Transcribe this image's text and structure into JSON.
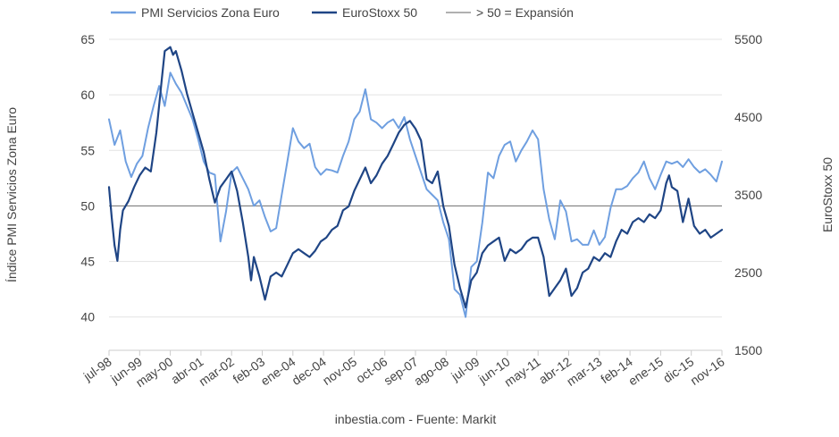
{
  "chart_data": {
    "type": "line",
    "title": "",
    "source": "inbestia.com - Fuente: Markit",
    "y_left_label": "Índice PMI Servicios Zona Euro",
    "y_right_label": "EuroStoxx 50",
    "y_left_range": [
      37,
      65
    ],
    "y_left_ticks": [
      "40",
      "45",
      "50",
      "55",
      "60",
      "65"
    ],
    "y_right_range": [
      1500,
      5500
    ],
    "y_right_ticks": [
      "1500",
      "2500",
      "3500",
      "4500",
      "5500"
    ],
    "x_range": [
      "1998-07",
      "2016-11"
    ],
    "x_ticks": [
      {
        "label": "jul-98",
        "date": "1998-07"
      },
      {
        "label": "jun-99",
        "date": "1999-06"
      },
      {
        "label": "may-00",
        "date": "2000-05"
      },
      {
        "label": "abr-01",
        "date": "2001-04"
      },
      {
        "label": "mar-02",
        "date": "2002-03"
      },
      {
        "label": "feb-03",
        "date": "2003-02"
      },
      {
        "label": "ene-04",
        "date": "2004-01"
      },
      {
        "label": "dec-04",
        "date": "2004-12"
      },
      {
        "label": "nov-05",
        "date": "2005-11"
      },
      {
        "label": "oct-06",
        "date": "2006-10"
      },
      {
        "label": "sep-07",
        "date": "2007-09"
      },
      {
        "label": "ago-08",
        "date": "2008-08"
      },
      {
        "label": "jul-09",
        "date": "2009-07"
      },
      {
        "label": "jun-10",
        "date": "2010-06"
      },
      {
        "label": "may-11",
        "date": "2011-05"
      },
      {
        "label": "abr-12",
        "date": "2012-04"
      },
      {
        "label": "mar-13",
        "date": "2013-03"
      },
      {
        "label": "feb-14",
        "date": "2014-02"
      },
      {
        "label": "ene-15",
        "date": "2015-01"
      },
      {
        "label": "dic-15",
        "date": "2015-12"
      },
      {
        "label": "nov-16",
        "date": "2016-11"
      }
    ],
    "grid": true,
    "legend_position": "top",
    "reference_line": {
      "name": "> 50 = Expansión",
      "value": 50,
      "axis": "left",
      "color": "#808080"
    },
    "series": [
      {
        "name": "PMI Servicios Zona Euro",
        "axis": "left",
        "color": "#6f9fe0",
        "points": [
          [
            "1998-07",
            57.8
          ],
          [
            "1998-09",
            55.5
          ],
          [
            "1998-11",
            56.8
          ],
          [
            "1999-01",
            54.0
          ],
          [
            "1999-03",
            52.6
          ],
          [
            "1999-05",
            53.8
          ],
          [
            "1999-07",
            54.5
          ],
          [
            "1999-09",
            57.0
          ],
          [
            "1999-11",
            59.0
          ],
          [
            "2000-01",
            60.8
          ],
          [
            "2000-03",
            59.0
          ],
          [
            "2000-05",
            62.0
          ],
          [
            "2000-07",
            61.0
          ],
          [
            "2000-09",
            60.2
          ],
          [
            "2000-11",
            59.0
          ],
          [
            "2001-01",
            57.8
          ],
          [
            "2001-03",
            56.0
          ],
          [
            "2001-05",
            54.0
          ],
          [
            "2001-07",
            53.0
          ],
          [
            "2001-09",
            52.8
          ],
          [
            "2001-11",
            46.8
          ],
          [
            "2002-01",
            49.5
          ],
          [
            "2002-03",
            53.0
          ],
          [
            "2002-05",
            53.5
          ],
          [
            "2002-07",
            52.5
          ],
          [
            "2002-09",
            51.5
          ],
          [
            "2002-11",
            50.0
          ],
          [
            "2003-01",
            50.5
          ],
          [
            "2003-03",
            49.0
          ],
          [
            "2003-05",
            47.7
          ],
          [
            "2003-07",
            48.0
          ],
          [
            "2003-09",
            51.0
          ],
          [
            "2003-11",
            54.0
          ],
          [
            "2004-01",
            57.0
          ],
          [
            "2004-03",
            55.8
          ],
          [
            "2004-05",
            55.2
          ],
          [
            "2004-07",
            55.6
          ],
          [
            "2004-09",
            53.5
          ],
          [
            "2004-11",
            52.8
          ],
          [
            "2005-01",
            53.3
          ],
          [
            "2005-03",
            53.2
          ],
          [
            "2005-05",
            53.0
          ],
          [
            "2005-07",
            54.5
          ],
          [
            "2005-09",
            55.8
          ],
          [
            "2005-11",
            57.8
          ],
          [
            "2006-01",
            58.5
          ],
          [
            "2006-03",
            60.5
          ],
          [
            "2006-05",
            57.8
          ],
          [
            "2006-07",
            57.5
          ],
          [
            "2006-09",
            57.0
          ],
          [
            "2006-11",
            57.5
          ],
          [
            "2007-01",
            57.8
          ],
          [
            "2007-03",
            57.0
          ],
          [
            "2007-05",
            58.0
          ],
          [
            "2007-07",
            56.0
          ],
          [
            "2007-09",
            54.5
          ],
          [
            "2007-11",
            53.0
          ],
          [
            "2008-01",
            51.5
          ],
          [
            "2008-03",
            51.0
          ],
          [
            "2008-05",
            50.5
          ],
          [
            "2008-07",
            48.5
          ],
          [
            "2008-09",
            47.0
          ],
          [
            "2008-11",
            42.5
          ],
          [
            "2009-01",
            42.0
          ],
          [
            "2009-03",
            40.0
          ],
          [
            "2009-05",
            44.5
          ],
          [
            "2009-07",
            45.0
          ],
          [
            "2009-09",
            48.5
          ],
          [
            "2009-11",
            53.0
          ],
          [
            "2010-01",
            52.5
          ],
          [
            "2010-03",
            54.5
          ],
          [
            "2010-05",
            55.5
          ],
          [
            "2010-07",
            55.8
          ],
          [
            "2010-09",
            54.0
          ],
          [
            "2010-11",
            55.0
          ],
          [
            "2011-01",
            55.8
          ],
          [
            "2011-03",
            56.8
          ],
          [
            "2011-05",
            56.0
          ],
          [
            "2011-07",
            51.5
          ],
          [
            "2011-09",
            48.8
          ],
          [
            "2011-11",
            47.0
          ],
          [
            "2012-01",
            50.5
          ],
          [
            "2012-03",
            49.5
          ],
          [
            "2012-05",
            46.8
          ],
          [
            "2012-07",
            47.0
          ],
          [
            "2012-09",
            46.5
          ],
          [
            "2012-11",
            46.5
          ],
          [
            "2013-01",
            47.8
          ],
          [
            "2013-03",
            46.5
          ],
          [
            "2013-05",
            47.2
          ],
          [
            "2013-07",
            49.8
          ],
          [
            "2013-09",
            51.5
          ],
          [
            "2013-11",
            51.5
          ],
          [
            "2014-01",
            51.8
          ],
          [
            "2014-03",
            52.5
          ],
          [
            "2014-05",
            53.0
          ],
          [
            "2014-07",
            54.0
          ],
          [
            "2014-09",
            52.5
          ],
          [
            "2014-11",
            51.5
          ],
          [
            "2015-01",
            52.8
          ],
          [
            "2015-03",
            54.0
          ],
          [
            "2015-05",
            53.8
          ],
          [
            "2015-07",
            54.0
          ],
          [
            "2015-09",
            53.5
          ],
          [
            "2015-11",
            54.2
          ],
          [
            "2016-01",
            53.5
          ],
          [
            "2016-03",
            53.0
          ],
          [
            "2016-05",
            53.3
          ],
          [
            "2016-07",
            52.8
          ],
          [
            "2016-09",
            52.2
          ],
          [
            "2016-11",
            54.0
          ]
        ]
      },
      {
        "name": "EuroStoxx 50",
        "axis": "right",
        "color": "#1f4585",
        "points": [
          [
            "1998-07",
            3600
          ],
          [
            "1998-08",
            3200
          ],
          [
            "1998-09",
            2850
          ],
          [
            "1998-10",
            2650
          ],
          [
            "1998-11",
            3050
          ],
          [
            "1998-12",
            3300
          ],
          [
            "1999-02",
            3420
          ],
          [
            "1999-04",
            3600
          ],
          [
            "1999-06",
            3750
          ],
          [
            "1999-08",
            3850
          ],
          [
            "1999-10",
            3800
          ],
          [
            "1999-12",
            4300
          ],
          [
            "2000-02",
            5000
          ],
          [
            "2000-03",
            5350
          ],
          [
            "2000-05",
            5400
          ],
          [
            "2000-06",
            5300
          ],
          [
            "2000-07",
            5350
          ],
          [
            "2000-09",
            5100
          ],
          [
            "2000-11",
            4800
          ],
          [
            "2001-01",
            4550
          ],
          [
            "2001-03",
            4300
          ],
          [
            "2001-05",
            4050
          ],
          [
            "2001-07",
            3700
          ],
          [
            "2001-09",
            3400
          ],
          [
            "2001-11",
            3600
          ],
          [
            "2002-01",
            3700
          ],
          [
            "2002-03",
            3800
          ],
          [
            "2002-05",
            3550
          ],
          [
            "2002-07",
            3150
          ],
          [
            "2002-09",
            2700
          ],
          [
            "2002-10",
            2400
          ],
          [
            "2002-11",
            2700
          ],
          [
            "2003-01",
            2450
          ],
          [
            "2003-03",
            2150
          ],
          [
            "2003-05",
            2450
          ],
          [
            "2003-07",
            2500
          ],
          [
            "2003-09",
            2450
          ],
          [
            "2003-11",
            2600
          ],
          [
            "2004-01",
            2750
          ],
          [
            "2004-03",
            2800
          ],
          [
            "2004-05",
            2750
          ],
          [
            "2004-07",
            2700
          ],
          [
            "2004-09",
            2780
          ],
          [
            "2004-11",
            2900
          ],
          [
            "2005-01",
            2950
          ],
          [
            "2005-03",
            3050
          ],
          [
            "2005-05",
            3100
          ],
          [
            "2005-07",
            3300
          ],
          [
            "2005-09",
            3350
          ],
          [
            "2005-11",
            3550
          ],
          [
            "2006-01",
            3700
          ],
          [
            "2006-03",
            3850
          ],
          [
            "2006-05",
            3650
          ],
          [
            "2006-07",
            3750
          ],
          [
            "2006-09",
            3900
          ],
          [
            "2006-11",
            4000
          ],
          [
            "2007-01",
            4150
          ],
          [
            "2007-03",
            4300
          ],
          [
            "2007-05",
            4400
          ],
          [
            "2007-07",
            4450
          ],
          [
            "2007-09",
            4350
          ],
          [
            "2007-11",
            4200
          ],
          [
            "2008-01",
            3700
          ],
          [
            "2008-03",
            3650
          ],
          [
            "2008-05",
            3800
          ],
          [
            "2008-07",
            3350
          ],
          [
            "2008-09",
            3100
          ],
          [
            "2008-11",
            2600
          ],
          [
            "2009-01",
            2300
          ],
          [
            "2009-03",
            2050
          ],
          [
            "2009-05",
            2400
          ],
          [
            "2009-07",
            2500
          ],
          [
            "2009-09",
            2750
          ],
          [
            "2009-11",
            2850
          ],
          [
            "2010-01",
            2900
          ],
          [
            "2010-03",
            2950
          ],
          [
            "2010-05",
            2650
          ],
          [
            "2010-07",
            2800
          ],
          [
            "2010-09",
            2750
          ],
          [
            "2010-11",
            2800
          ],
          [
            "2011-01",
            2900
          ],
          [
            "2011-03",
            2950
          ],
          [
            "2011-05",
            2950
          ],
          [
            "2011-07",
            2700
          ],
          [
            "2011-09",
            2200
          ],
          [
            "2011-11",
            2300
          ],
          [
            "2012-01",
            2400
          ],
          [
            "2012-03",
            2550
          ],
          [
            "2012-05",
            2200
          ],
          [
            "2012-07",
            2300
          ],
          [
            "2012-09",
            2500
          ],
          [
            "2012-11",
            2550
          ],
          [
            "2013-01",
            2700
          ],
          [
            "2013-03",
            2650
          ],
          [
            "2013-05",
            2750
          ],
          [
            "2013-07",
            2700
          ],
          [
            "2013-09",
            2900
          ],
          [
            "2013-11",
            3050
          ],
          [
            "2014-01",
            3000
          ],
          [
            "2014-03",
            3150
          ],
          [
            "2014-05",
            3200
          ],
          [
            "2014-07",
            3150
          ],
          [
            "2014-09",
            3250
          ],
          [
            "2014-11",
            3200
          ],
          [
            "2015-01",
            3300
          ],
          [
            "2015-03",
            3650
          ],
          [
            "2015-04",
            3750
          ],
          [
            "2015-05",
            3600
          ],
          [
            "2015-07",
            3550
          ],
          [
            "2015-09",
            3150
          ],
          [
            "2015-11",
            3450
          ],
          [
            "2016-01",
            3100
          ],
          [
            "2016-03",
            3000
          ],
          [
            "2016-05",
            3050
          ],
          [
            "2016-07",
            2950
          ],
          [
            "2016-09",
            3000
          ],
          [
            "2016-11",
            3050
          ]
        ]
      }
    ]
  }
}
